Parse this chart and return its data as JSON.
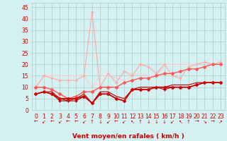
{
  "xlabel": "Vent moyen/en rafales ( km/h )",
  "bg_color": "#d4f0f0",
  "grid_color": "#b0cccc",
  "x_ticks": [
    0,
    1,
    2,
    3,
    4,
    5,
    6,
    7,
    8,
    9,
    10,
    11,
    12,
    13,
    14,
    15,
    16,
    17,
    18,
    19,
    20,
    21,
    22,
    23
  ],
  "y_ticks": [
    0,
    5,
    10,
    15,
    20,
    25,
    30,
    35,
    40,
    45
  ],
  "xlim": [
    -0.5,
    23.5
  ],
  "ylim": [
    0,
    47
  ],
  "arrow_color": "#cc0000",
  "tick_fontsize": 5.5,
  "xlabel_fontsize": 6.5,
  "wind_dirs": [
    "←",
    "↙",
    "←",
    "↙",
    "←",
    "←",
    "↙",
    "↑",
    "↓",
    "↙",
    "←",
    "↙",
    "↖",
    "↑",
    "↓",
    "↓",
    "↓",
    "↙",
    "↖",
    "↑",
    "→",
    "↘",
    "→",
    "↗"
  ],
  "series": [
    {
      "x": [
        0,
        1,
        2,
        3,
        4,
        5,
        6,
        7,
        8,
        9,
        10,
        11,
        12,
        13,
        14,
        15,
        16,
        17,
        18,
        19,
        20,
        21,
        22,
        23
      ],
      "y": [
        7,
        8,
        7,
        5,
        5,
        5,
        6,
        3,
        7,
        7,
        5,
        4,
        9,
        9,
        9,
        10,
        10,
        10,
        10,
        10,
        11,
        12,
        12,
        12
      ],
      "color": "#cc0000",
      "lw": 1.2,
      "marker": "D",
      "ms": 2.0,
      "zorder": 5
    },
    {
      "x": [
        0,
        1,
        2,
        3,
        4,
        5,
        6,
        7,
        8,
        9,
        10,
        11,
        12,
        13,
        14,
        15,
        16,
        17,
        18,
        19,
        20,
        21,
        22,
        23
      ],
      "y": [
        7,
        8,
        7,
        4,
        4,
        4,
        6,
        3,
        7,
        7,
        5,
        4,
        9,
        9,
        9,
        10,
        9,
        10,
        10,
        10,
        11,
        12,
        12,
        12
      ],
      "color": "#aa0000",
      "lw": 0.8,
      "marker": "+",
      "ms": 3,
      "zorder": 4
    },
    {
      "x": [
        0,
        1,
        2,
        3,
        4,
        5,
        6,
        7,
        8,
        9,
        10,
        11,
        12,
        13,
        14,
        15,
        16,
        17,
        18,
        19,
        20,
        21,
        22,
        23
      ],
      "y": [
        7,
        8,
        8,
        5,
        4,
        5,
        7,
        3,
        8,
        8,
        6,
        5,
        9,
        10,
        10,
        10,
        10,
        11,
        11,
        11,
        12,
        12,
        12,
        12
      ],
      "color": "#bb0000",
      "lw": 0.8,
      "marker": null,
      "ms": 0,
      "zorder": 3
    },
    {
      "x": [
        0,
        1,
        2,
        3,
        4,
        5,
        6,
        7,
        8,
        9,
        10,
        11,
        12,
        13,
        14,
        15,
        16,
        17,
        18,
        19,
        20,
        21,
        22,
        23
      ],
      "y": [
        10,
        10,
        9,
        7,
        5,
        6,
        8,
        8,
        10,
        10,
        10,
        12,
        13,
        14,
        14,
        15,
        16,
        16,
        17,
        18,
        18,
        19,
        20,
        20
      ],
      "color": "#ff5555",
      "lw": 1.0,
      "marker": "D",
      "ms": 2.0,
      "zorder": 4
    },
    {
      "x": [
        0,
        1,
        2,
        3,
        4,
        5,
        6,
        7,
        8,
        9,
        10,
        11,
        12,
        13,
        14,
        15,
        16,
        17,
        18,
        19,
        20,
        21,
        22,
        23
      ],
      "y": [
        10,
        15,
        14,
        13,
        13,
        13,
        15,
        43,
        10,
        16,
        12,
        17,
        15,
        20,
        19,
        16,
        20,
        15,
        14,
        19,
        20,
        21,
        20,
        21
      ],
      "color": "#ffaaaa",
      "lw": 0.8,
      "marker": "+",
      "ms": 3,
      "zorder": 3
    },
    {
      "x": [
        0,
        1,
        2,
        3,
        4,
        5,
        6,
        7,
        8,
        9,
        10,
        11,
        12,
        13,
        14,
        15,
        16,
        17,
        18,
        19,
        20,
        21,
        22,
        23
      ],
      "y": [
        10,
        15,
        15,
        15,
        15,
        15,
        15,
        10,
        15,
        15,
        14,
        13,
        15,
        16,
        15,
        15,
        20,
        20,
        20,
        20,
        20,
        21,
        20,
        21
      ],
      "color": "#ffcccc",
      "lw": 0.8,
      "marker": null,
      "ms": 0,
      "zorder": 2
    }
  ]
}
